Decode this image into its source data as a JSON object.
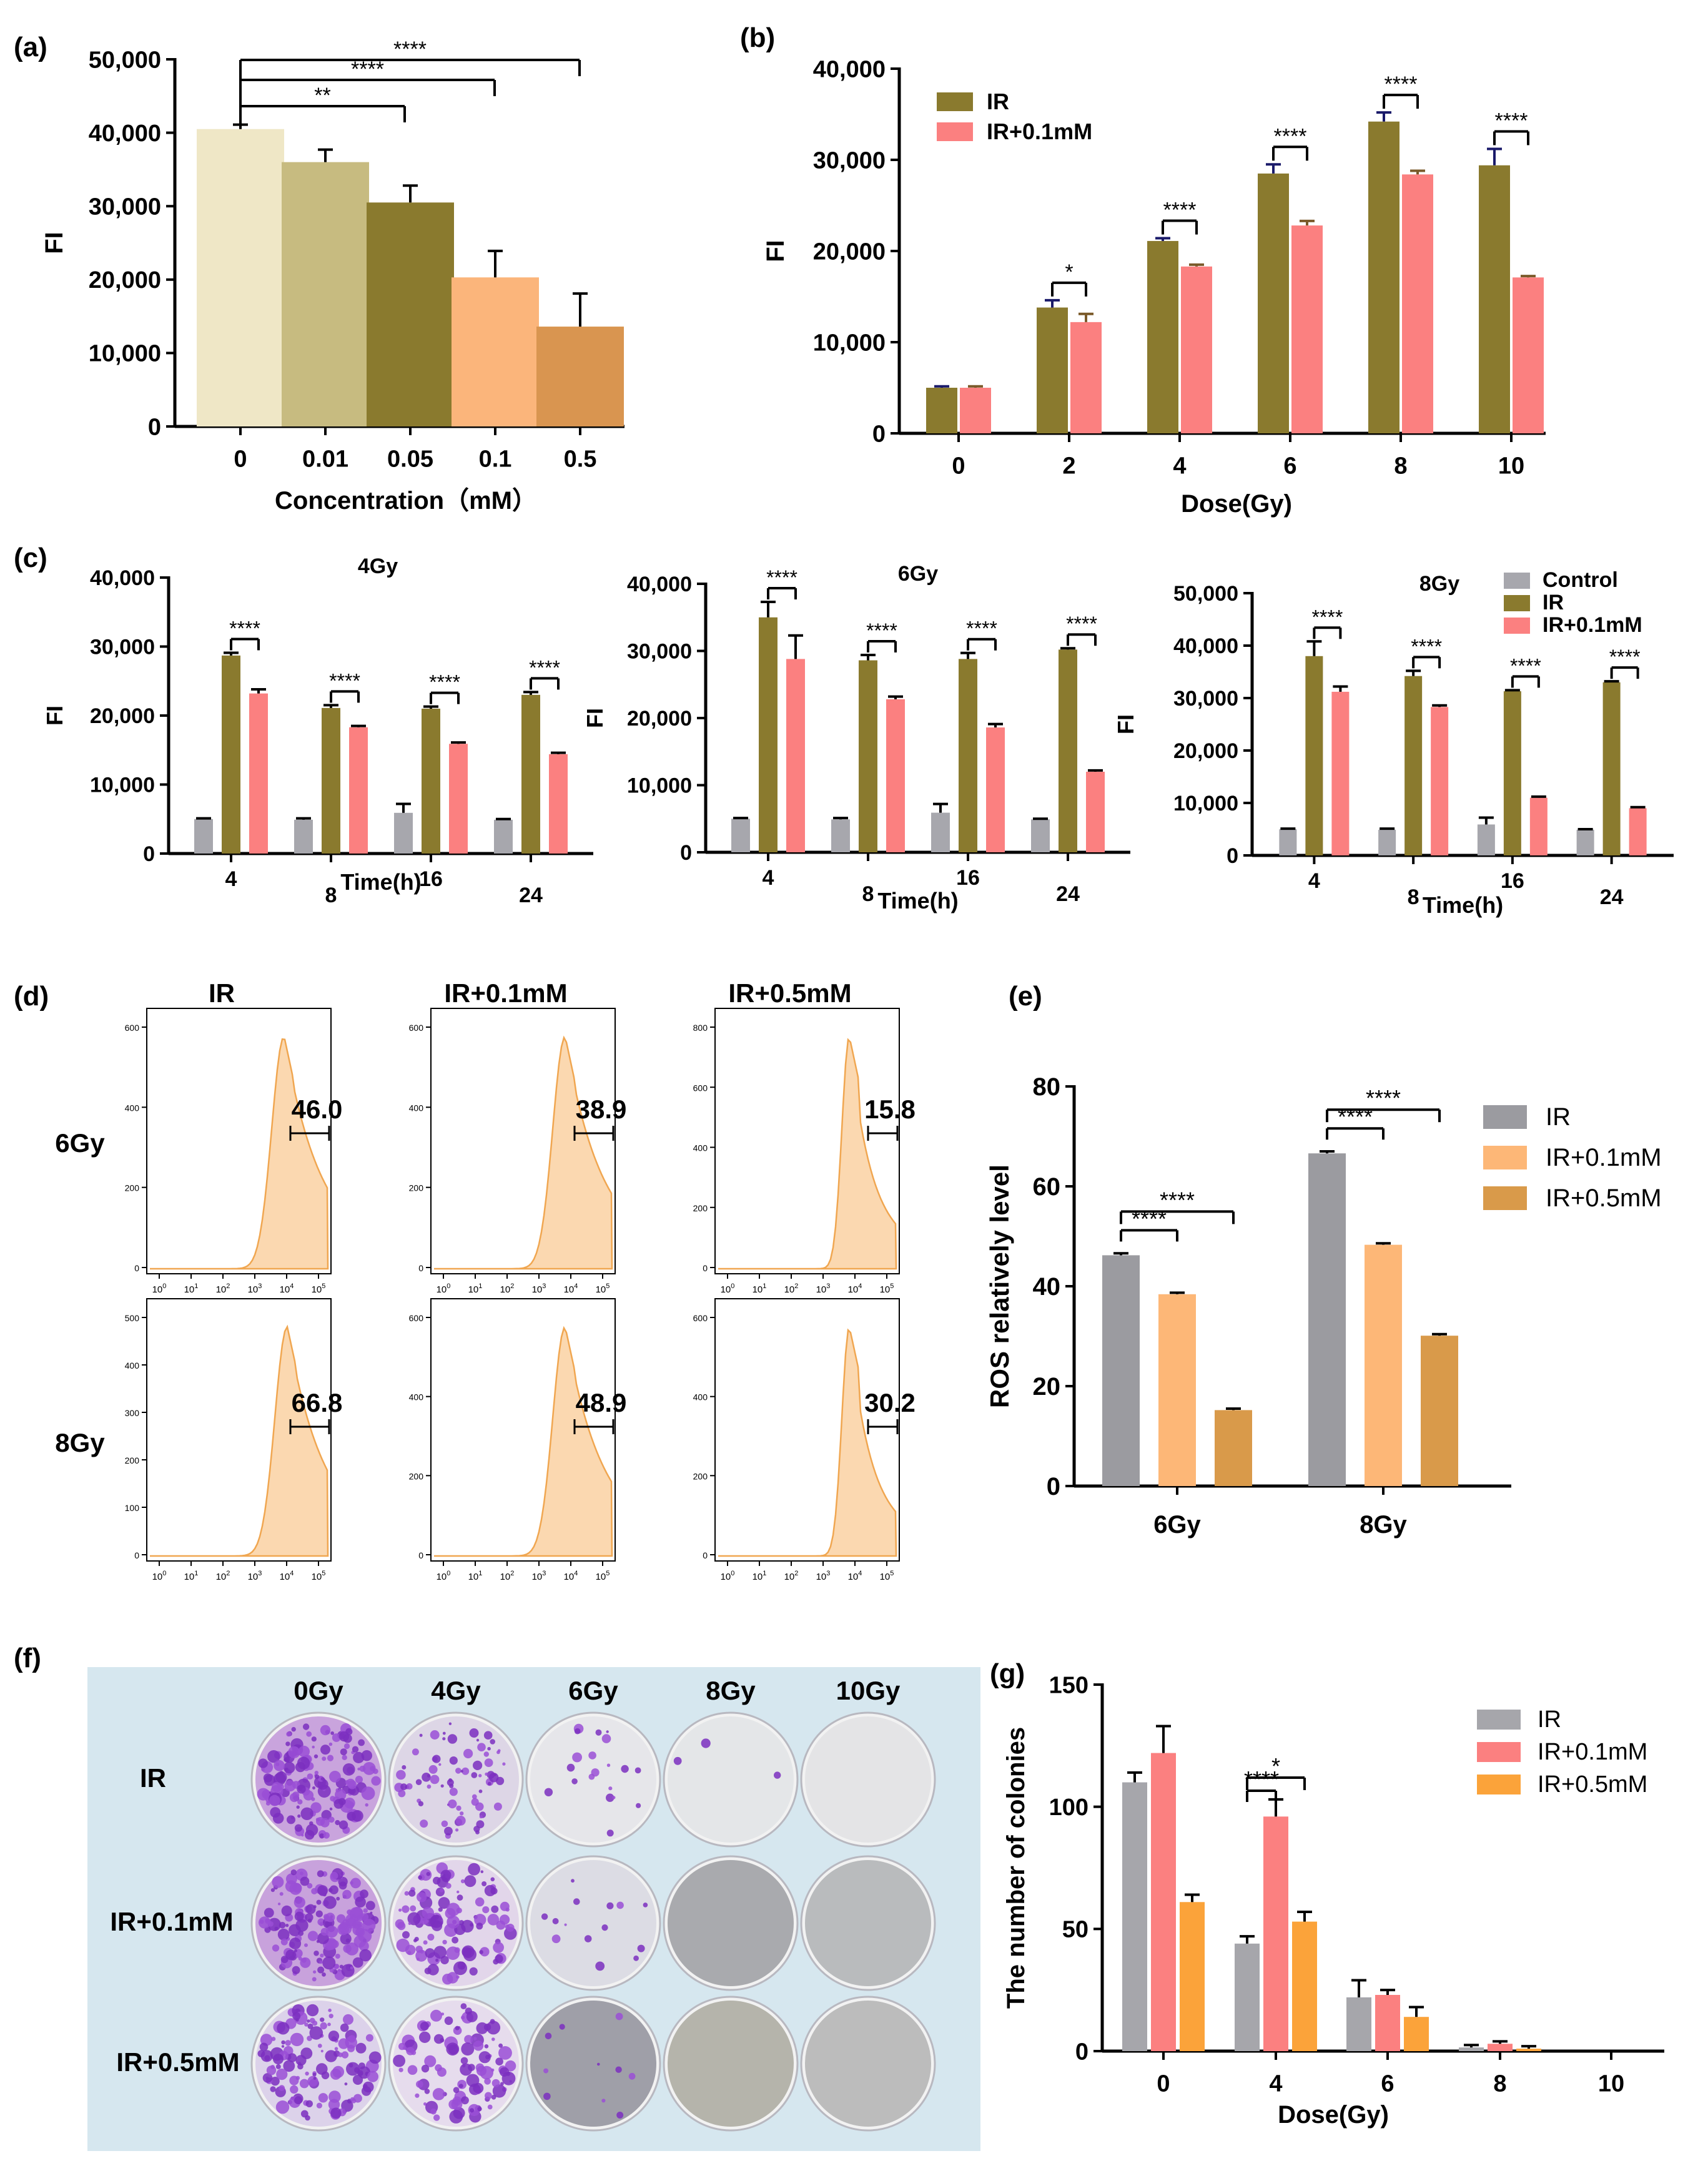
{
  "panel_labels": {
    "a": "(a)",
    "b": "(b)",
    "c": "(c)",
    "d": "(d)",
    "e": "(e)",
    "f": "(f)",
    "g": "(g)"
  },
  "colors": {
    "ir": "#8a7a2e",
    "ir01": "#fb8080",
    "control": "#a7a7ad",
    "e_ir": "#9b9ba0",
    "e_01": "#fdb777",
    "e_05": "#d99a4a",
    "g_ir": "#a6a6ab",
    "g_01": "#fb8080",
    "g_05": "#fba33a",
    "a": [
      "#efe7c6",
      "#c7bb80",
      "#8a7a2e",
      "#fbb57b",
      "#d99550"
    ],
    "histo_fill": "#fbd8b0",
    "histo_line": "#f0a650",
    "dish_bg": "#d6e7ef"
  },
  "flow": {
    "col_titles": [
      "IR",
      "IR+0.1mM",
      "IR+0.5mM"
    ],
    "row_labels": [
      "6Gy",
      "8Gy"
    ],
    "values": [
      [
        "46.0",
        "38.9",
        "15.8"
      ],
      [
        "66.8",
        "48.9",
        "30.2"
      ]
    ],
    "x_ticks": [
      "0",
      "1",
      "2",
      "3",
      "4",
      "5"
    ],
    "y_ticks": [
      [
        [
          "600",
          "400",
          "200",
          "0"
        ],
        [
          "600",
          "400",
          "200",
          "0"
        ],
        [
          "800",
          "600",
          "400",
          "200",
          "0"
        ]
      ],
      [
        [
          "500",
          "400",
          "300",
          "200",
          "100",
          "0"
        ],
        [
          "600",
          "400",
          "200",
          "0"
        ],
        [
          "600",
          "400",
          "200",
          "0"
        ]
      ]
    ]
  },
  "colony": {
    "col_titles": [
      "0Gy",
      "4Gy",
      "6Gy",
      "8Gy",
      "10Gy"
    ],
    "row_labels": [
      "IR",
      "IR+0.1mM",
      "IR+0.5mM"
    ]
  },
  "chart_data": [
    {
      "id": "a",
      "type": "bar",
      "categories": [
        "0",
        "0.01",
        "0.05",
        "0.1",
        "0.5"
      ],
      "values": [
        40500,
        36000,
        30500,
        20300,
        13600
      ],
      "errors": [
        600,
        1700,
        2300,
        3600,
        4500
      ],
      "xlabel": "Concentration（mM）",
      "ylabel": "FI",
      "ylim": [
        0,
        50000
      ],
      "yticks": [
        "0",
        "10,000",
        "20,000",
        "30,000",
        "40,000",
        "50,000"
      ],
      "significance": [
        "**",
        "****",
        "****"
      ]
    },
    {
      "id": "b",
      "type": "bar",
      "categories": [
        "0",
        "2",
        "4",
        "6",
        "8",
        "10"
      ],
      "series": [
        {
          "name": "IR",
          "values": [
            5000,
            13800,
            21100,
            28500,
            34200,
            29400
          ],
          "errors": [
            150,
            800,
            300,
            1000,
            1000,
            1800
          ]
        },
        {
          "name": "IR+0.1mM",
          "values": [
            5000,
            12200,
            18300,
            22800,
            28400,
            17100
          ],
          "errors": [
            150,
            900,
            200,
            500,
            400,
            150
          ]
        }
      ],
      "xlabel": "Dose(Gy)",
      "ylabel": "FI",
      "ylim": [
        0,
        40000
      ],
      "yticks": [
        "0",
        "10,000",
        "20,000",
        "30,000",
        "40,000"
      ],
      "significance": [
        "*",
        "****",
        "****",
        "****",
        "****"
      ]
    },
    {
      "id": "c1",
      "type": "bar",
      "title": "4Gy",
      "categories": [
        "4",
        "8",
        "16",
        "24"
      ],
      "series": [
        {
          "name": "Control",
          "values": [
            5000,
            4900,
            5900,
            4900
          ],
          "errors": [
            100,
            200,
            1300,
            100
          ]
        },
        {
          "name": "IR",
          "values": [
            28700,
            21100,
            21000,
            23000
          ],
          "errors": [
            400,
            400,
            300,
            400
          ]
        },
        {
          "name": "IR+0.1mM",
          "values": [
            23200,
            18300,
            15900,
            14400
          ],
          "errors": [
            600,
            200,
            200,
            200
          ]
        }
      ],
      "xlabel": "Time(h)",
      "ylabel": "FI",
      "ylim": [
        0,
        40000
      ],
      "yticks": [
        "0",
        "10,000",
        "20,000",
        "30,000",
        "40,000"
      ],
      "significance": [
        "****",
        "****",
        "****",
        "****"
      ]
    },
    {
      "id": "c2",
      "type": "bar",
      "title": "6Gy",
      "categories": [
        "4",
        "8",
        "16",
        "24"
      ],
      "series": [
        {
          "name": "Control",
          "values": [
            5000,
            4900,
            5900,
            4900
          ],
          "errors": [
            100,
            200,
            1300,
            100
          ]
        },
        {
          "name": "IR",
          "values": [
            35000,
            28600,
            28800,
            30200
          ],
          "errors": [
            2300,
            800,
            900,
            200
          ]
        },
        {
          "name": "IR+0.1mM",
          "values": [
            28800,
            22800,
            18600,
            12000
          ],
          "errors": [
            3500,
            400,
            500,
            200
          ]
        }
      ],
      "xlabel": "Time(h)",
      "ylabel": "FI",
      "ylim": [
        0,
        40000
      ],
      "yticks": [
        "0",
        "10,000",
        "20,000",
        "30,000",
        "40,000"
      ],
      "significance": [
        "****",
        "****",
        "****",
        "****"
      ]
    },
    {
      "id": "c3",
      "type": "bar",
      "title": "8Gy",
      "categories": [
        "4",
        "8",
        "16",
        "24"
      ],
      "series": [
        {
          "name": "Control",
          "values": [
            5000,
            4900,
            5900,
            4900
          ],
          "errors": [
            100,
            200,
            1300,
            100
          ]
        },
        {
          "name": "IR",
          "values": [
            38000,
            34200,
            31300,
            33000
          ],
          "errors": [
            2800,
            1000,
            200,
            200
          ]
        },
        {
          "name": "IR+0.1mM",
          "values": [
            31200,
            28300,
            11000,
            9000
          ],
          "errors": [
            1000,
            300,
            200,
            200
          ]
        }
      ],
      "xlabel": "Time(h)",
      "ylabel": "FI",
      "ylim": [
        0,
        50000
      ],
      "yticks": [
        "0",
        "10,000",
        "20,000",
        "30,000",
        "40,000",
        "50,000"
      ],
      "legend": [
        "Control",
        "IR",
        "IR+0.1mM"
      ],
      "significance": [
        "****",
        "****",
        "****",
        "****"
      ]
    },
    {
      "id": "e",
      "type": "bar",
      "categories": [
        "6Gy",
        "8Gy"
      ],
      "series": [
        {
          "name": "IR",
          "values": [
            46.2,
            66.6
          ],
          "errors": [
            0.4,
            0.4
          ]
        },
        {
          "name": "IR+0.1mM",
          "values": [
            38.4,
            48.3
          ],
          "errors": [
            0.3,
            0.3
          ]
        },
        {
          "name": "IR+0.5mM",
          "values": [
            15.2,
            30.1
          ],
          "errors": [
            0.3,
            0.3
          ]
        }
      ],
      "xlabel": "",
      "ylabel": "ROS relatively level",
      "ylim": [
        0,
        80
      ],
      "yticks": [
        "0",
        "20",
        "40",
        "60",
        "80"
      ],
      "significance": [
        "****",
        "****",
        "****",
        "****"
      ]
    },
    {
      "id": "g",
      "type": "bar",
      "categories": [
        "0",
        "4",
        "6",
        "8",
        "10"
      ],
      "series": [
        {
          "name": "IR",
          "values": [
            110,
            44,
            22,
            1.5,
            0
          ],
          "errors": [
            4,
            3,
            7,
            1,
            0
          ]
        },
        {
          "name": "IR+0.1mM",
          "values": [
            122,
            96,
            23,
            3,
            0
          ],
          "errors": [
            11,
            7,
            2,
            1,
            0
          ]
        },
        {
          "name": "IR+0.5mM",
          "values": [
            61,
            53,
            14,
            1,
            0
          ],
          "errors": [
            3,
            4,
            4,
            1,
            0
          ]
        }
      ],
      "xlabel": "Dose(Gy)",
      "ylabel": "The number of colonies",
      "ylim": [
        0,
        150
      ],
      "yticks": [
        "0",
        "50",
        "100",
        "150"
      ],
      "significance": [
        "*",
        "****"
      ]
    }
  ]
}
